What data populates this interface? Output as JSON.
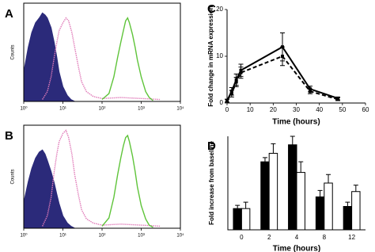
{
  "chart_data": [
    {
      "type": "hist",
      "panel": "A",
      "ylabel": "Counts",
      "log_x": true,
      "xlim": [
        1,
        10000
      ],
      "ylim": [
        0,
        100
      ],
      "xticks": [
        {
          "value": 1,
          "label": "10⁰"
        },
        {
          "value": 10,
          "label": "10¹"
        },
        {
          "value": 100,
          "label": "10²"
        },
        {
          "value": 1000,
          "label": "10³"
        },
        {
          "value": 10000,
          "label": "10⁴"
        }
      ],
      "series": [
        {
          "color": "#2b2a7a",
          "fill": true,
          "x": [
            1,
            1.3,
            1.6,
            2,
            2.5,
            3,
            3.5,
            4,
            5,
            6,
            7,
            8,
            10,
            13,
            16,
            20
          ],
          "values": [
            30,
            55,
            70,
            80,
            85,
            90,
            88,
            85,
            75,
            60,
            45,
            30,
            15,
            6,
            2,
            0
          ]
        },
        {
          "color": "#e07ab8",
          "dash": true,
          "x": [
            3,
            4,
            5,
            6,
            7,
            8,
            10,
            12,
            14,
            17,
            20,
            25,
            30,
            40,
            60,
            100,
            300,
            1000,
            3000
          ],
          "values": [
            2,
            10,
            25,
            45,
            60,
            72,
            80,
            85,
            82,
            70,
            55,
            35,
            20,
            10,
            5,
            3,
            4,
            3,
            2
          ]
        },
        {
          "color": "#5fc43a",
          "x": [
            100,
            150,
            200,
            250,
            300,
            350,
            400,
            450,
            500,
            600,
            700,
            800,
            1000,
            1300,
            1600,
            2000
          ],
          "values": [
            2,
            8,
            25,
            45,
            60,
            72,
            82,
            85,
            80,
            68,
            55,
            42,
            25,
            10,
            4,
            1
          ]
        }
      ]
    },
    {
      "type": "hist",
      "panel": "B",
      "ylabel": "Counts",
      "log_x": true,
      "xlim": [
        1,
        10000
      ],
      "ylim": [
        0,
        100
      ],
      "xticks": [
        {
          "value": 1,
          "label": "10⁰"
        },
        {
          "value": 10,
          "label": "10¹"
        },
        {
          "value": 100,
          "label": "10²"
        },
        {
          "value": 1000,
          "label": "10³"
        },
        {
          "value": 10000,
          "label": "10⁴"
        }
      ],
      "series": [
        {
          "color": "#2b2a7a",
          "fill": true,
          "x": [
            1,
            1.3,
            1.6,
            2,
            2.5,
            3,
            3.5,
            4,
            5,
            6,
            7,
            8,
            10,
            13,
            16,
            20
          ],
          "values": [
            25,
            45,
            58,
            68,
            74,
            76,
            72,
            66,
            55,
            44,
            33,
            24,
            12,
            5,
            2,
            0
          ]
        },
        {
          "color": "#e07ab8",
          "dash": true,
          "x": [
            3,
            4,
            5,
            6,
            7,
            8,
            10,
            12,
            14,
            17,
            20,
            25,
            30,
            40,
            60,
            100,
            300,
            1000,
            3000
          ],
          "values": [
            2,
            12,
            30,
            55,
            72,
            84,
            92,
            95,
            88,
            72,
            52,
            32,
            18,
            9,
            5,
            3,
            4,
            3,
            2
          ]
        },
        {
          "color": "#5fc43a",
          "x": [
            100,
            150,
            200,
            250,
            300,
            350,
            400,
            450,
            500,
            600,
            700,
            800,
            1000,
            1300,
            1600,
            2000
          ],
          "values": [
            2,
            10,
            30,
            52,
            68,
            80,
            88,
            90,
            84,
            70,
            55,
            40,
            22,
            9,
            3,
            1
          ]
        }
      ]
    },
    {
      "type": "line",
      "panel": "C",
      "ylabel": "Fold change in mRNA expression",
      "xlabel": "Time (hours)",
      "xlim": [
        0,
        60
      ],
      "ylim": [
        0,
        20
      ],
      "xticks": [
        0,
        10,
        20,
        30,
        40,
        50,
        60
      ],
      "yticks": [
        0,
        10,
        20
      ],
      "x": [
        0,
        2,
        4,
        6,
        24,
        36,
        48
      ],
      "series": [
        {
          "color": "#000000",
          "values": [
            0.5,
            2.5,
            5,
            7,
            12,
            3,
            1
          ],
          "errors": [
            0.3,
            0.8,
            1.2,
            1.3,
            3,
            0.6,
            0.3
          ]
        },
        {
          "color": "#000000",
          "dash": true,
          "values": [
            0.5,
            2,
            4.5,
            6.5,
            10,
            2.5,
            0.8
          ],
          "errors": [
            0.3,
            0.7,
            1,
            1.2,
            2,
            0.5,
            0.3
          ]
        }
      ]
    },
    {
      "type": "bar",
      "panel": "D",
      "ylabel": "Fold increase from baseline",
      "xlabel": "Time (hours)",
      "categories": [
        "0",
        "2",
        "4",
        "8",
        "12"
      ],
      "ylim": [
        0,
        4.4
      ],
      "series": [
        {
          "color": "#000000",
          "values": [
            1.0,
            3.2,
            4.0,
            1.55,
            1.1
          ],
          "errors": [
            0.15,
            0.2,
            0.4,
            0.3,
            0.2
          ]
        },
        {
          "color": "#ffffff",
          "values": [
            1.0,
            3.6,
            2.7,
            2.2,
            1.8
          ],
          "errors": [
            0.3,
            0.45,
            0.5,
            0.4,
            0.3
          ]
        }
      ]
    }
  ]
}
